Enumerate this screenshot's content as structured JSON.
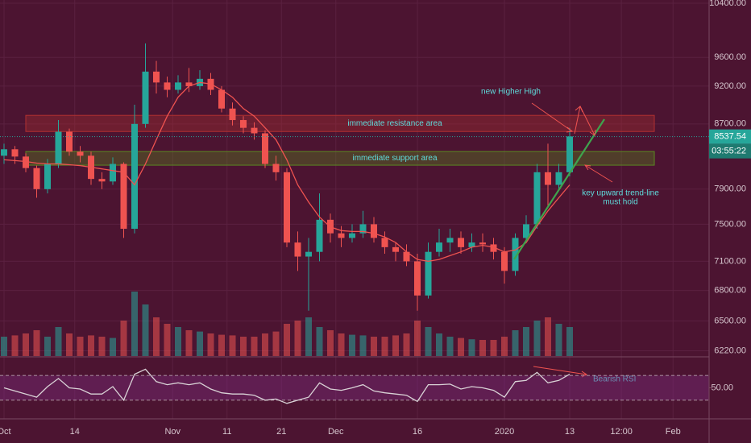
{
  "chart_data": {
    "type": "candlestick",
    "x": [
      "2019-10-01",
      "2019-10-03",
      "2019-10-05",
      "2019-10-07",
      "2019-10-09",
      "2019-10-11",
      "2019-10-13",
      "2019-10-15",
      "2019-10-17",
      "2019-10-19",
      "2019-10-21",
      "2019-10-23",
      "2019-10-25",
      "2019-10-27",
      "2019-10-29",
      "2019-10-31",
      "2019-11-02",
      "2019-11-04",
      "2019-11-06",
      "2019-11-08",
      "2019-11-10",
      "2019-11-12",
      "2019-11-14",
      "2019-11-16",
      "2019-11-18",
      "2019-11-20",
      "2019-11-22",
      "2019-11-24",
      "2019-11-26",
      "2019-11-28",
      "2019-11-30",
      "2019-12-02",
      "2019-12-04",
      "2019-12-06",
      "2019-12-08",
      "2019-12-10",
      "2019-12-12",
      "2019-12-14",
      "2019-12-16",
      "2019-12-18",
      "2019-12-20",
      "2019-12-22",
      "2019-12-24",
      "2019-12-26",
      "2019-12-28",
      "2019-12-30",
      "2020-01-01",
      "2020-01-03",
      "2020-01-05",
      "2020-01-07",
      "2020-01-09",
      "2020-01-11",
      "2020-01-13"
    ],
    "open": [
      8300,
      8380,
      8290,
      8150,
      7900,
      8200,
      8600,
      8350,
      8300,
      8020,
      7990,
      8200,
      7450,
      8700,
      9400,
      9250,
      9150,
      9250,
      9200,
      9300,
      9150,
      8900,
      8750,
      8650,
      8580,
      8200,
      8100,
      7300,
      7150,
      7200,
      7550,
      7400,
      7350,
      7400,
      7500,
      7350,
      7250,
      7200,
      7100,
      6750,
      7200,
      7300,
      7350,
      7250,
      7300,
      7280,
      7200,
      7000,
      7350,
      7500,
      8100,
      7950,
      8100
    ],
    "high": [
      8450,
      8420,
      8330,
      8180,
      8260,
      8750,
      8640,
      8420,
      8350,
      8100,
      8280,
      8220,
      8950,
      9800,
      9550,
      9330,
      9350,
      9450,
      9420,
      9380,
      9200,
      8980,
      8800,
      8720,
      8620,
      8300,
      8150,
      7420,
      7350,
      7850,
      7620,
      7480,
      7500,
      7650,
      7580,
      7420,
      7300,
      7280,
      7180,
      7300,
      7450,
      7450,
      7420,
      7400,
      7400,
      7350,
      7250,
      7400,
      7600,
      8200,
      8450,
      8200,
      8650
    ],
    "low": [
      8200,
      8200,
      8100,
      7800,
      7850,
      8150,
      8300,
      8220,
      7950,
      7900,
      7950,
      7350,
      7400,
      8650,
      9100,
      9050,
      9100,
      9120,
      9150,
      9080,
      8850,
      8680,
      8580,
      8500,
      8150,
      8000,
      7250,
      7000,
      6600,
      7100,
      7300,
      7250,
      7300,
      7350,
      7300,
      7180,
      7100,
      7050,
      6600,
      6720,
      7150,
      7200,
      7180,
      7200,
      7200,
      7120,
      6870,
      6950,
      7300,
      7450,
      7700,
      7900,
      8050
    ],
    "close": [
      8380,
      8290,
      8150,
      7900,
      8200,
      8600,
      8350,
      8300,
      8020,
      7990,
      8200,
      7450,
      8700,
      9400,
      9250,
      9150,
      9250,
      9200,
      9300,
      9150,
      8900,
      8750,
      8650,
      8580,
      8200,
      8100,
      7300,
      7150,
      7200,
      7550,
      7400,
      7350,
      7400,
      7500,
      7350,
      7250,
      7200,
      7100,
      6750,
      7200,
      7300,
      7350,
      7250,
      7300,
      7280,
      7200,
      7000,
      7350,
      7500,
      8100,
      7950,
      8100,
      8540
    ],
    "up_color": "#26a69a",
    "down_color": "#ef5350",
    "moving_average": {
      "color": "#ef5350",
      "values": [
        8250,
        8240,
        8230,
        8210,
        8200,
        8200,
        8190,
        8180,
        8160,
        8140,
        8120,
        8100,
        7950,
        8200,
        8500,
        8800,
        9050,
        9200,
        9250,
        9230,
        9150,
        9050,
        8900,
        8800,
        8650,
        8500,
        8250,
        7950,
        7750,
        7580,
        7470,
        7430,
        7420,
        7420,
        7400,
        7360,
        7300,
        7200,
        7120,
        7100,
        7120,
        7160,
        7200,
        7250,
        7270,
        7250,
        7200,
        7220,
        7300,
        7480,
        7650,
        7800,
        7950
      ]
    },
    "volume": {
      "values": [
        30,
        32,
        35,
        40,
        30,
        45,
        35,
        30,
        32,
        30,
        28,
        55,
        100,
        80,
        60,
        50,
        45,
        40,
        38,
        35,
        33,
        32,
        30,
        30,
        35,
        38,
        50,
        55,
        60,
        45,
        40,
        35,
        33,
        32,
        30,
        30,
        32,
        35,
        55,
        45,
        35,
        30,
        28,
        26,
        25,
        25,
        30,
        40,
        45,
        55,
        60,
        50,
        45
      ]
    },
    "rsi": {
      "color": "#d9d2d6",
      "values": [
        50,
        45,
        40,
        35,
        52,
        65,
        50,
        48,
        40,
        40,
        52,
        30,
        72,
        80,
        60,
        55,
        58,
        55,
        58,
        48,
        42,
        40,
        40,
        38,
        30,
        32,
        25,
        30,
        35,
        58,
        48,
        46,
        50,
        55,
        45,
        42,
        40,
        38,
        28,
        55,
        55,
        56,
        48,
        52,
        50,
        46,
        35,
        60,
        62,
        75,
        58,
        62,
        72
      ],
      "ylim": [
        0,
        100
      ],
      "band": [
        30,
        70
      ],
      "yticks": [
        {
          "value": 50,
          "label": "50.00"
        }
      ]
    },
    "xlim": [
      "2019-09-30",
      "2020-02-08"
    ],
    "xticks": [
      {
        "value": "2019-10-01",
        "label": "Oct"
      },
      {
        "value": "2019-10-14",
        "label": "14"
      },
      {
        "value": "2019-11-01",
        "label": "Nov"
      },
      {
        "value": "2019-11-11",
        "label": "11"
      },
      {
        "value": "2019-11-21",
        "label": "21"
      },
      {
        "value": "2019-12-01",
        "label": "Dec"
      },
      {
        "value": "2019-12-16",
        "label": "16"
      },
      {
        "value": "2020-01-01",
        "label": "2020"
      },
      {
        "value": "2020-01-13",
        "label": "13"
      },
      {
        "value": "2020-01-22T12:00Z",
        "label": "12:00"
      },
      {
        "value": "2020-02-01",
        "label": "Feb"
      }
    ],
    "ylim": [
      6150,
      10450
    ],
    "yticks": [
      {
        "value": 10400,
        "label": "10400.00"
      },
      {
        "value": 9600,
        "label": "9600.00"
      },
      {
        "value": 9200,
        "label": "9200.00"
      },
      {
        "value": 8700,
        "label": "8700.00"
      },
      {
        "value": 7900,
        "label": "7900.00"
      },
      {
        "value": 7500,
        "label": "7500.00"
      },
      {
        "value": 7100,
        "label": "7100.00"
      },
      {
        "value": 6800,
        "label": "6800.00"
      },
      {
        "value": 6500,
        "label": "6500.00"
      },
      {
        "value": 6220,
        "label": "6220.00"
      }
    ],
    "log_scale": true,
    "grid": true,
    "last_price": 8537.54,
    "countdown": "03:55:22",
    "zones": [
      {
        "label": "immediate resistance area",
        "range": [
          8603,
          8811
        ],
        "color": "#b03030"
      },
      {
        "label": "immediate support area",
        "range": [
          8185,
          8352
        ],
        "color": "#5a8a20"
      }
    ],
    "annotations": [
      "new Higher High",
      [
        "key upward trend-line",
        "must hold"
      ],
      "Bearish RSI"
    ]
  }
}
